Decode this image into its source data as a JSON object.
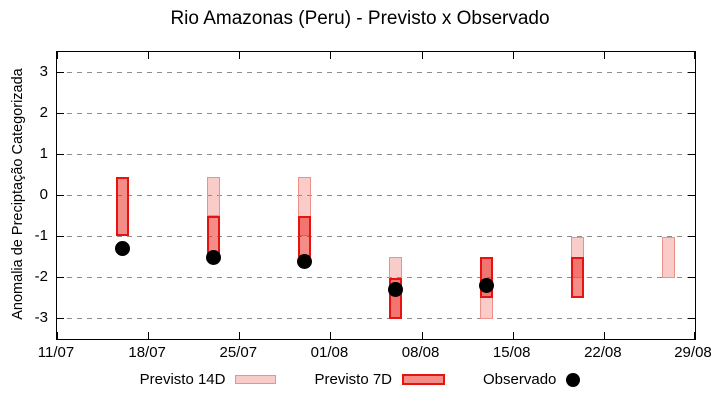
{
  "title": "Rio Amazonas (Peru) - Previsto x Observado",
  "legend": {
    "previsto_14d_label": "Previsto 14D",
    "previsto_7d_label": "Previsto 7D",
    "observado_label": "Observado"
  },
  "colors": {
    "previsto_14d_fill": "rgba(240,100,92,0.33)",
    "previsto_14d_border": "#ee9189",
    "previsto_7d_fill": "rgba(235,45,38,0.55)",
    "previsto_7d_border": "#e81210",
    "observado": "#000000",
    "grid": "#8c8c8c",
    "axis": "#000000"
  },
  "chart_data": {
    "type": "bar",
    "subtype": "range-bars-with-points",
    "title": "Rio Amazonas (Peru) - Previsto x Observado",
    "xlabel": "",
    "ylabel": "Anomalia de Preciptação Categorizada",
    "ylim": [
      -3.5,
      3.5
    ],
    "yticks": [
      3,
      2,
      1,
      0,
      -1,
      -2,
      -3
    ],
    "ytick_labels": [
      "3",
      "2",
      "1",
      "0",
      "-1",
      "-2",
      "-3"
    ],
    "xtick_labels": [
      "11/07",
      "18/07",
      "25/07",
      "01/08",
      "08/08",
      "15/08",
      "22/08",
      "29/08"
    ],
    "xtick_interval_days": 7,
    "x_span_days": 49,
    "grid": "horizontal-dashed",
    "legend_position": "bottom-outside",
    "series": [
      {
        "name": "Previsto 14D",
        "type": "range-bar"
      },
      {
        "name": "Previsto 7D",
        "type": "range-bar"
      },
      {
        "name": "Observado",
        "type": "point"
      }
    ],
    "groups": [
      {
        "date": "16/07",
        "day": 5,
        "previsto_14d": null,
        "previsto_7d": {
          "top": 0.45,
          "bottom": -1.0
        },
        "observado": -1.3
      },
      {
        "date": "23/07",
        "day": 12,
        "previsto_14d": {
          "top": 0.45,
          "bottom": -0.5
        },
        "previsto_7d": {
          "top": -0.5,
          "bottom": -1.5
        },
        "observado": -1.5
      },
      {
        "date": "30/07",
        "day": 19,
        "previsto_14d": {
          "top": 0.45,
          "bottom": -1.0
        },
        "previsto_7d": {
          "top": -0.5,
          "bottom": -1.5
        },
        "observado": -1.6
      },
      {
        "date": "06/08",
        "day": 26,
        "previsto_14d": {
          "top": -1.5,
          "bottom": -3.0
        },
        "previsto_7d": {
          "top": -2.0,
          "bottom": -3.0
        },
        "observado": -2.3
      },
      {
        "date": "13/08",
        "day": 33,
        "previsto_14d": {
          "top": -1.5,
          "bottom": -3.0
        },
        "previsto_7d": {
          "top": -1.5,
          "bottom": -2.5
        },
        "observado": -2.2
      },
      {
        "date": "20/08",
        "day": 40,
        "previsto_14d": {
          "top": -1.0,
          "bottom": -2.0
        },
        "previsto_7d": {
          "top": -1.5,
          "bottom": -2.5
        },
        "observado": null
      },
      {
        "date": "27/08",
        "day": 47,
        "previsto_14d": {
          "top": -1.0,
          "bottom": -2.0
        },
        "previsto_7d": null,
        "observado": null
      }
    ]
  }
}
